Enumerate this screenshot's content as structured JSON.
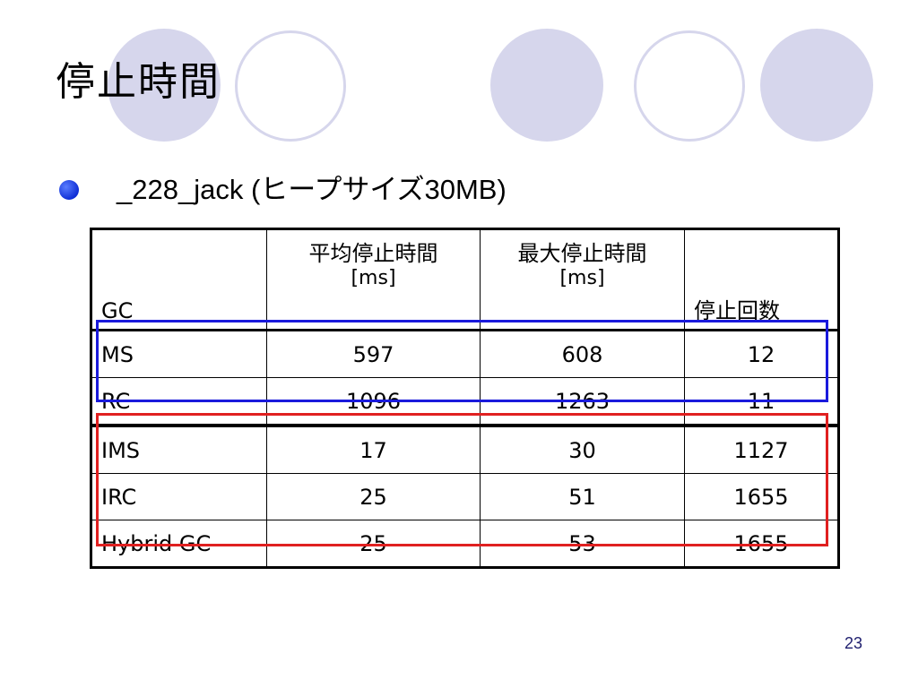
{
  "slide": {
    "title": "停止時間",
    "bullet": "_228_jack (ヒープサイズ30MB)",
    "page_number": "23"
  },
  "table": {
    "headers": {
      "gc": "GC",
      "avg": "平均停止時間",
      "avg_unit": "[ms]",
      "max": "最大停止時間",
      "max_unit": "[ms]",
      "count": "停止回数"
    },
    "rows": [
      {
        "gc": "MS",
        "avg": "597",
        "max": "608",
        "count": "12"
      },
      {
        "gc": "RC",
        "avg": "1096",
        "max": "1263",
        "count": "11"
      },
      {
        "gc": "IMS",
        "avg": "17",
        "max": "30",
        "count": "1127"
      },
      {
        "gc": "IRC",
        "avg": "25",
        "max": "51",
        "count": "1655"
      },
      {
        "gc": "Hybrid GC",
        "avg": "25",
        "max": "53",
        "count": "1655"
      }
    ]
  },
  "colors": {
    "circle": "#d6d6ec",
    "blue_highlight": "#1a1adc",
    "red_highlight": "#e02020",
    "bullet": "#1f3fe0"
  }
}
